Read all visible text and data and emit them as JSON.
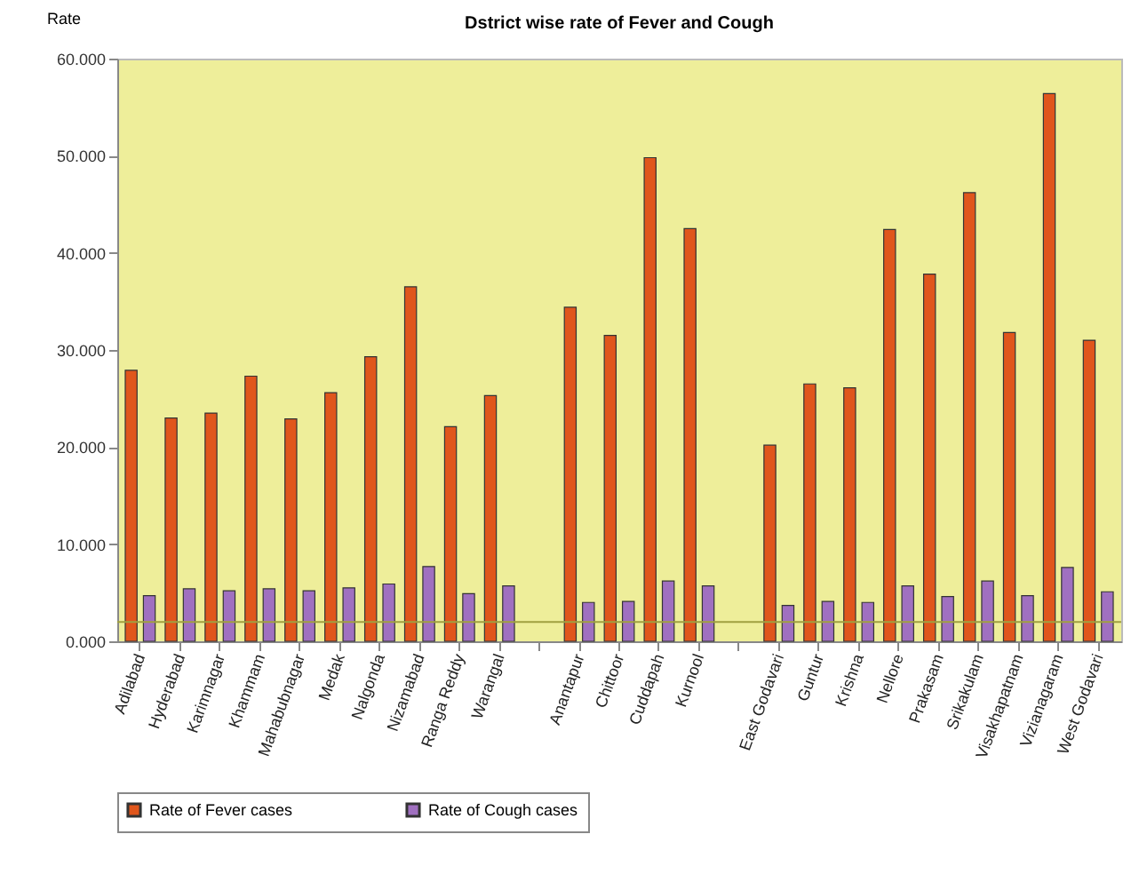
{
  "chart_data": {
    "type": "bar",
    "title": "Dstrict wise rate of Fever and Cough",
    "ylabel": "Rate",
    "categories": [
      "Adilabad",
      "Hyderabad",
      "Karimnagar",
      "Khammam",
      "Mahabubnagar",
      "Medak",
      "Nalgonda",
      "Nizamabad",
      "Ranga Reddy",
      "Warangal",
      null,
      "Anantapur",
      "Chittoor",
      "Cuddapah",
      "Kurnool",
      null,
      "East Godavari",
      "Guntur",
      "Krishna",
      "Nellore",
      "Prakasam",
      "Srikakulam",
      "Visakhapatnam",
      "Vizianagaram",
      "West Godavari"
    ],
    "series": [
      {
        "name": "Rate of Fever cases",
        "color": "#e0561c",
        "values": [
          27.9,
          23.0,
          23.5,
          27.3,
          22.9,
          25.6,
          29.3,
          36.5,
          22.1,
          25.3,
          null,
          34.4,
          31.5,
          49.8,
          42.5,
          null,
          20.2,
          26.5,
          26.1,
          42.4,
          37.8,
          46.2,
          31.8,
          56.4,
          31.0
        ]
      },
      {
        "name": "Rate of Cough cases",
        "color": "#a070c0",
        "values": [
          4.7,
          5.4,
          5.2,
          5.4,
          5.2,
          5.5,
          5.9,
          7.7,
          4.9,
          5.7,
          null,
          4.0,
          4.1,
          6.2,
          5.7,
          null,
          3.7,
          4.1,
          4.0,
          5.7,
          4.6,
          6.2,
          4.7,
          7.6,
          5.1
        ]
      }
    ],
    "ylim": [
      0,
      60
    ],
    "yticks": [
      {
        "value": 0,
        "label": "0.000"
      },
      {
        "value": 10,
        "label": "10.000"
      },
      {
        "value": 20,
        "label": "20.000"
      },
      {
        "value": 30,
        "label": "30.000"
      },
      {
        "value": 40,
        "label": "40.000"
      },
      {
        "value": 50,
        "label": "50.000"
      },
      {
        "value": 60,
        "label": "60.000"
      }
    ],
    "ref_lines": [
      {
        "axis": "y",
        "value": 2,
        "color": "#a0a040"
      }
    ],
    "grid": false,
    "legend": "bottom"
  }
}
